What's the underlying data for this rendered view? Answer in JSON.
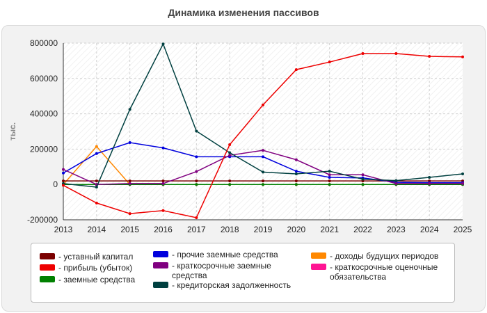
{
  "page": {
    "title": "Динамика изменения пассивов"
  },
  "chart_data": {
    "type": "line",
    "title": "Динамика изменения пассивов",
    "xlabel": "",
    "ylabel": "тыс.",
    "x": [
      2013,
      2014,
      2015,
      2016,
      2017,
      2018,
      2019,
      2020,
      2021,
      2022,
      2023,
      2024,
      2025
    ],
    "ylim": [
      -200000,
      800000
    ],
    "yticks": [
      -200000,
      0,
      200000,
      400000,
      600000,
      800000
    ],
    "ytick_labels": [
      "-200000",
      "0",
      "200000",
      "400000",
      "600000",
      "800000"
    ],
    "grid": true,
    "legend_position": "bottom",
    "series": [
      {
        "name": "уставный капитал",
        "color": "#7a0000",
        "values": [
          20000,
          20000,
          20000,
          20000,
          20000,
          20000,
          20000,
          20000,
          20000,
          20000,
          20000,
          20000,
          20000
        ]
      },
      {
        "name": "прибыль (убыток)",
        "color": "#ee0000",
        "values": [
          -5000,
          -105000,
          -165000,
          -148000,
          -188000,
          225000,
          450000,
          650000,
          693000,
          741000,
          741000,
          725000,
          722000
        ]
      },
      {
        "name": "заемные средства",
        "color": "#008000",
        "values": [
          0,
          0,
          0,
          0,
          0,
          0,
          0,
          0,
          0,
          0,
          0,
          0,
          0
        ]
      },
      {
        "name": "прочие заемные средства",
        "color": "#0000dd",
        "values": [
          65000,
          175000,
          237000,
          207000,
          157000,
          157000,
          157000,
          75000,
          40000,
          37000,
          12000,
          10000,
          10000
        ]
      },
      {
        "name": "краткосрочные заемные средства",
        "color": "#800080",
        "values": [
          85000,
          0,
          5000,
          5000,
          73000,
          165000,
          193000,
          140000,
          55000,
          55000,
          5000,
          5000,
          5000
        ]
      },
      {
        "name": "кредиторская задолженность",
        "color": "#004040",
        "values": [
          5000,
          -15000,
          425000,
          795000,
          302000,
          180000,
          70000,
          60000,
          75000,
          30000,
          22000,
          40000,
          60000
        ]
      },
      {
        "name": "доходы будущих периодов",
        "color": "#ff8800",
        "values": [
          0,
          215000,
          0,
          0,
          0,
          0,
          0,
          0,
          0,
          0,
          0,
          0,
          0
        ]
      },
      {
        "name": "краткосрочные оценочные обязательства",
        "color": "#ff1493",
        "values": [
          0,
          0,
          0,
          0,
          0,
          0,
          0,
          0,
          0,
          0,
          0,
          0,
          0
        ]
      }
    ]
  }
}
